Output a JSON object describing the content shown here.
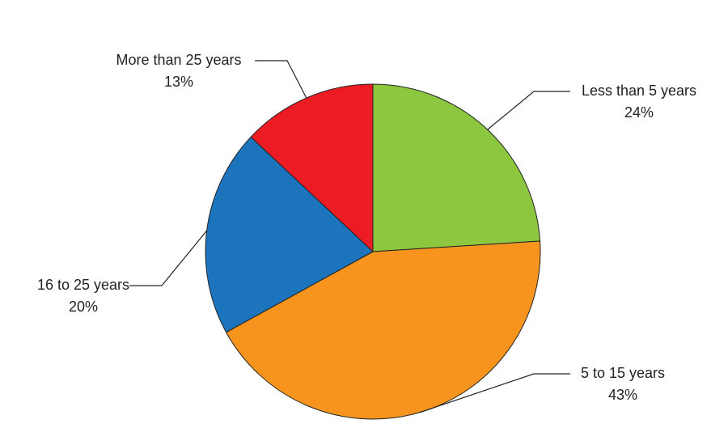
{
  "chart_data": {
    "type": "pie",
    "categories": [
      "Less than 5 years",
      "5 to 15 years",
      "16 to 25 years",
      "More than 25 years"
    ],
    "values": [
      24,
      43,
      20,
      13
    ],
    "value_labels": [
      "24%",
      "43%",
      "20%",
      "13%"
    ],
    "colors": [
      "#8dc63f",
      "#f7941d",
      "#1c75bc",
      "#ed1c24"
    ]
  }
}
